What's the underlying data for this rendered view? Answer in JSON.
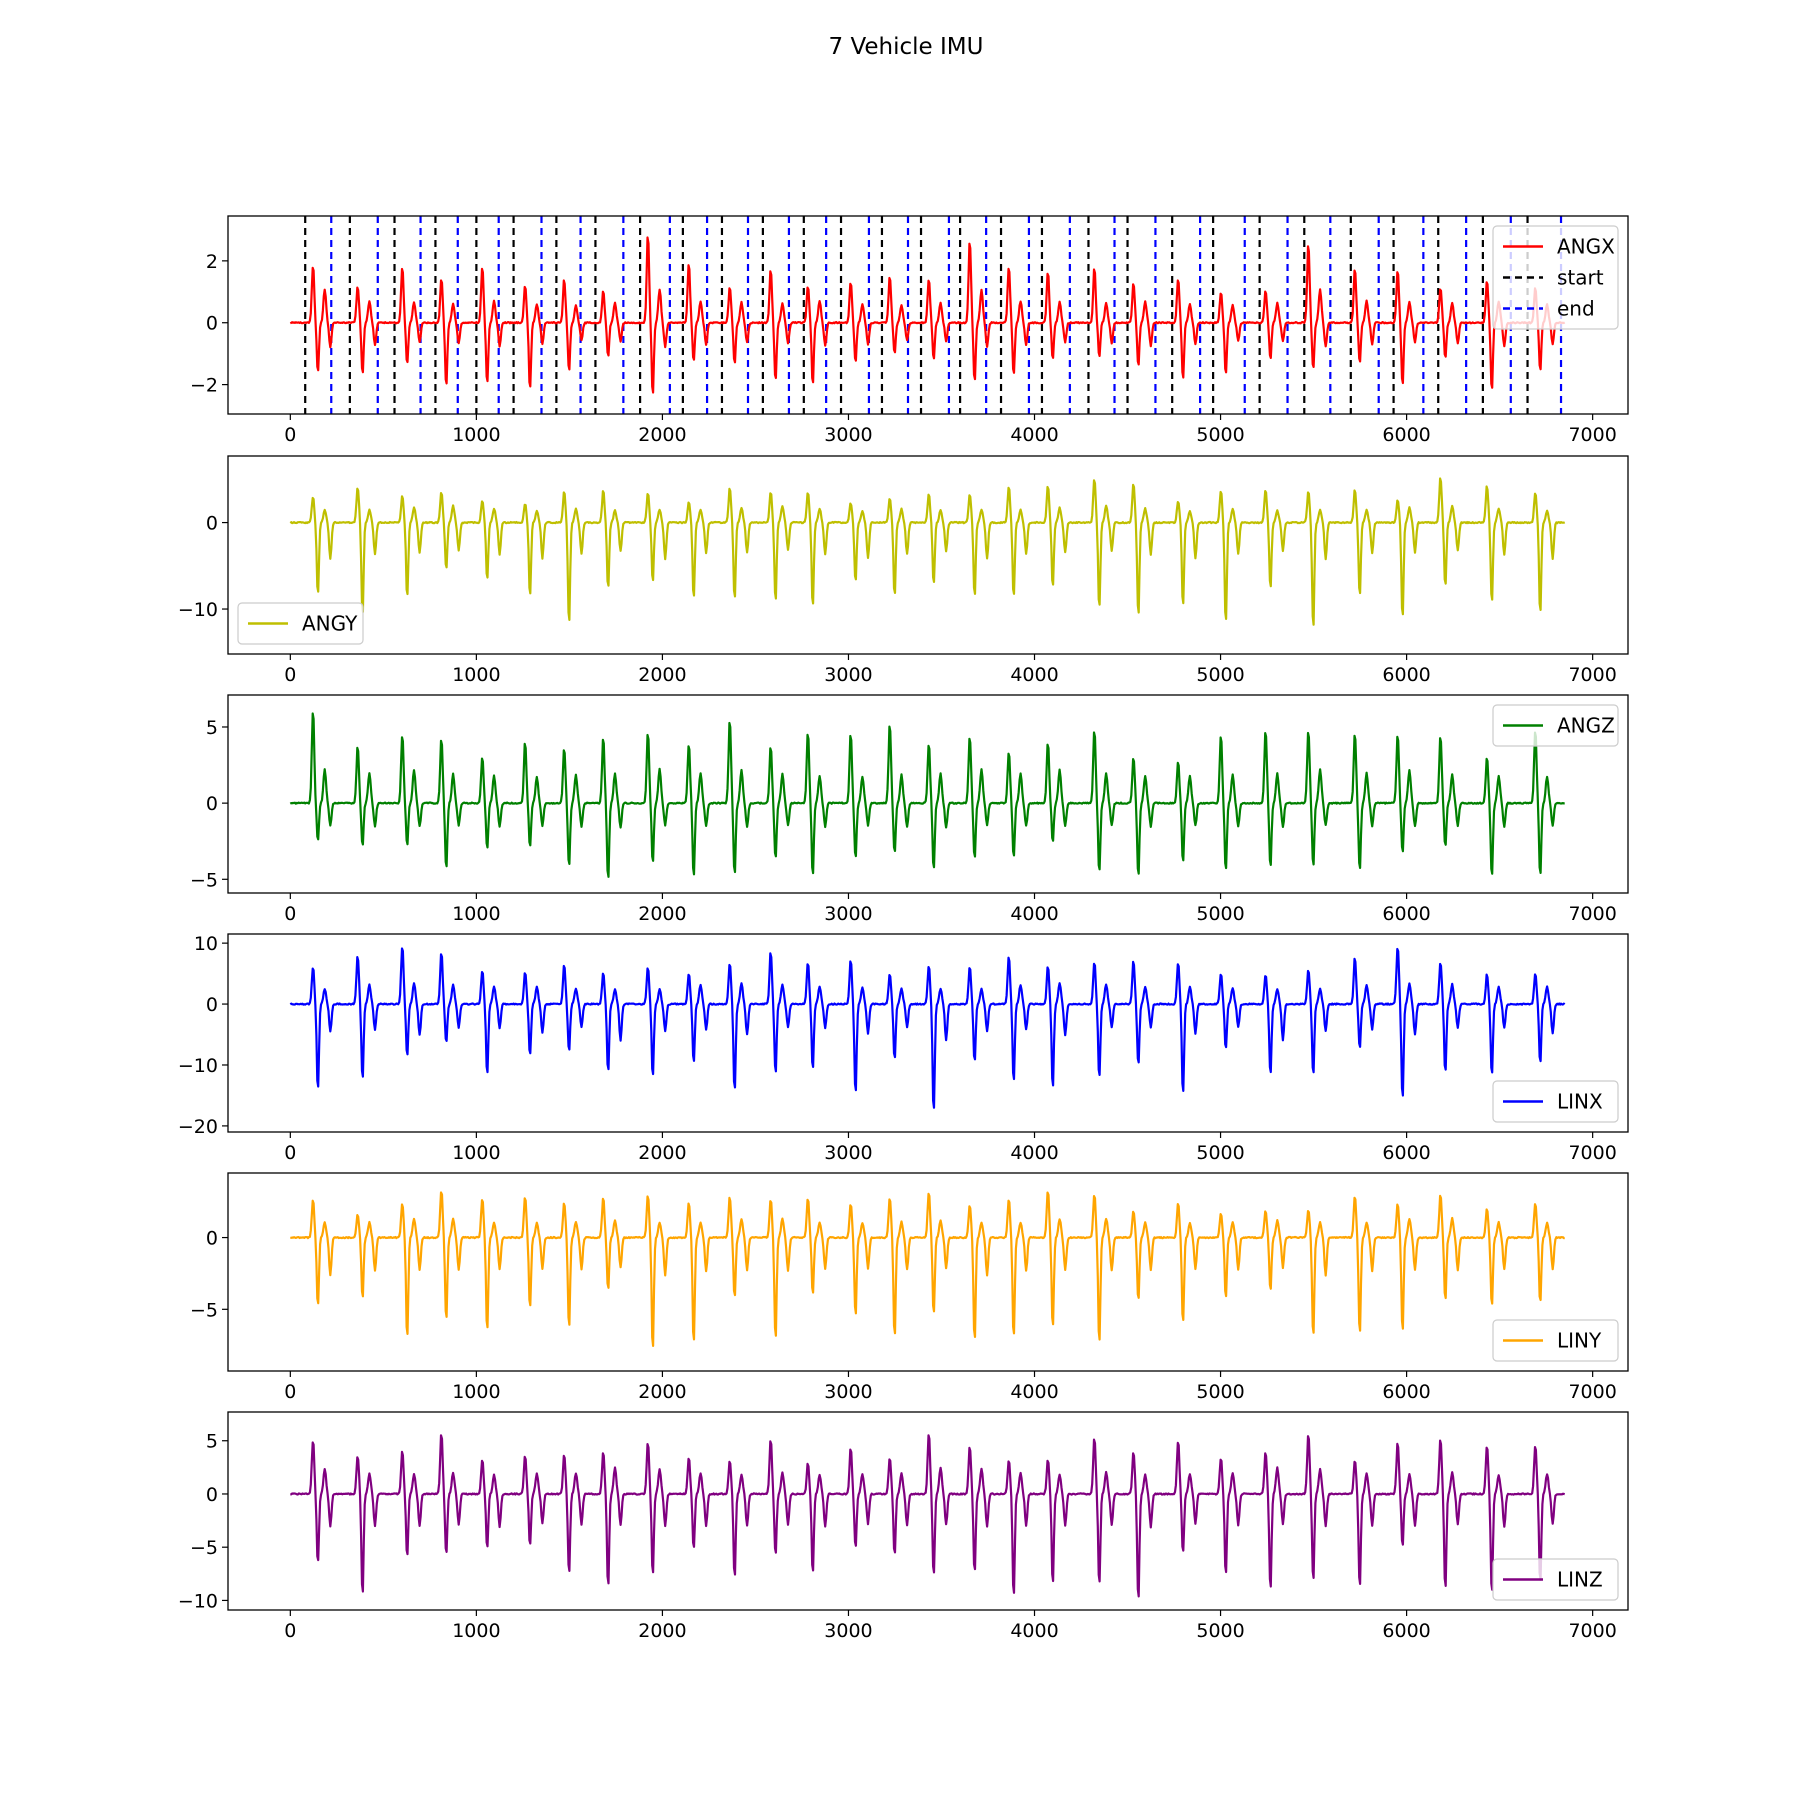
{
  "figure": {
    "title": "7 Vehicle IMU"
  },
  "chart_data": [
    {
      "type": "line",
      "series": [
        {
          "name": "ANGX",
          "color": "#ff0000",
          "pos": [
            3.1,
            2.0,
            1.9,
            1.8,
            2.0,
            1.7,
            1.6,
            1.8
          ],
          "neg": [
            -2.6,
            -2.4,
            -2.1,
            -2.2,
            -2.5,
            -2.3,
            -1.9,
            -2.0
          ]
        }
      ],
      "vlines": [
        {
          "name": "start",
          "color": "#000000",
          "style": "dashed",
          "x": [
            80,
            320,
            560,
            780,
            1000,
            1200,
            1430,
            1640,
            1880,
            2110,
            2320,
            2540,
            2760,
            2960,
            3180,
            3390,
            3600,
            3820,
            4040,
            4290,
            4500,
            4740,
            4960,
            5210,
            5450,
            5700,
            5930,
            6170,
            6410,
            6650
          ]
        },
        {
          "name": "end",
          "color": "#0000ff",
          "style": "dashed",
          "x": [
            220,
            470,
            700,
            900,
            1120,
            1350,
            1560,
            1790,
            2040,
            2240,
            2460,
            2680,
            2880,
            3110,
            3320,
            3540,
            3740,
            3970,
            4190,
            4430,
            4650,
            4890,
            5130,
            5360,
            5590,
            5850,
            6090,
            6320,
            6560,
            6830
          ]
        }
      ],
      "xlim": [
        -335,
        7190
      ],
      "ylim": [
        -2.95,
        3.45
      ],
      "xticks": [
        0,
        1000,
        2000,
        3000,
        4000,
        5000,
        6000,
        7000
      ],
      "yticks": [
        -2,
        0,
        2
      ],
      "legend": "top-right"
    },
    {
      "type": "line",
      "series": [
        {
          "name": "ANGY",
          "color": "#bfbf00",
          "pos": [
            4.3,
            4.2,
            4.9,
            5.5,
            4.6,
            3.8,
            4.5,
            4.0
          ],
          "neg": [
            -14.0,
            -12.0,
            -11.5,
            -10.7,
            -12.2,
            -13.8,
            -12.2,
            -10.9
          ]
        }
      ],
      "xlim": [
        -335,
        7190
      ],
      "ylim": [
        -15.2,
        7.7
      ],
      "xticks": [
        0,
        1000,
        2000,
        3000,
        4000,
        5000,
        6000,
        7000
      ],
      "yticks": [
        -10,
        0
      ],
      "legend": "bottom-left"
    },
    {
      "type": "line",
      "series": [
        {
          "name": "ANGZ",
          "color": "#008000",
          "pos": [
            6.4,
            5.6,
            6.2,
            5.5,
            5.1,
            5.0,
            5.3,
            5.5
          ],
          "neg": [
            -4.8,
            -5.0,
            -5.1,
            -4.9,
            -5.1,
            -4.9,
            -5.1,
            -5.3
          ]
        }
      ],
      "xlim": [
        -335,
        7190
      ],
      "ylim": [
        -5.9,
        7.1
      ],
      "xticks": [
        0,
        1000,
        2000,
        3000,
        4000,
        5000,
        6000,
        7000
      ],
      "yticks": [
        -5,
        0,
        5
      ],
      "legend": "top-right"
    },
    {
      "type": "line",
      "series": [
        {
          "name": "LINX",
          "color": "#0000ff",
          "pos": [
            7.0,
            9.0,
            9.7,
            9.3,
            8.2,
            8.0,
            7.4,
            6.9
          ],
          "neg": [
            -14.7,
            -13.9,
            -16.8,
            -12.7,
            -13.0,
            -16.0,
            -12.5,
            -19.8
          ]
        }
      ],
      "xlim": [
        -335,
        7190
      ],
      "ylim": [
        -21.0,
        11.5
      ],
      "xticks": [
        0,
        1000,
        2000,
        3000,
        4000,
        5000,
        6000,
        7000
      ],
      "yticks": [
        -20,
        -10,
        0,
        10
      ],
      "legend": "bottom-right"
    },
    {
      "type": "line",
      "series": [
        {
          "name": "LINY",
          "color": "#ffa500",
          "pos": [
            3.0,
            3.0,
            3.7,
            3.8,
            3.0,
            2.9,
            3.1,
            3.4
          ],
          "neg": [
            -8.7,
            -7.8,
            -7.5,
            -7.6,
            -7.4,
            -7.3,
            -7.4,
            -7.0
          ]
        }
      ],
      "xlim": [
        -335,
        7190
      ],
      "ylim": [
        -9.3,
        4.5
      ],
      "xticks": [
        0,
        1000,
        2000,
        3000,
        4000,
        5000,
        6000,
        7000
      ],
      "yticks": [
        -5,
        0
      ],
      "legend": "bottom-right"
    },
    {
      "type": "line",
      "series": [
        {
          "name": "LINZ",
          "color": "#800080",
          "pos": [
            6.7,
            5.5,
            5.2,
            5.8,
            5.1,
            5.4,
            5.6,
            7.0
          ],
          "neg": [
            -10.0,
            -9.9,
            -10.0,
            -9.5,
            -10.3,
            -9.3,
            -9.7,
            -9.5
          ]
        }
      ],
      "xlim": [
        -335,
        7190
      ],
      "ylim": [
        -10.9,
        7.7
      ],
      "xticks": [
        0,
        1000,
        2000,
        3000,
        4000,
        5000,
        6000,
        7000
      ],
      "yticks": [
        -10,
        -5,
        0,
        5
      ],
      "legend": "bottom-right"
    }
  ]
}
